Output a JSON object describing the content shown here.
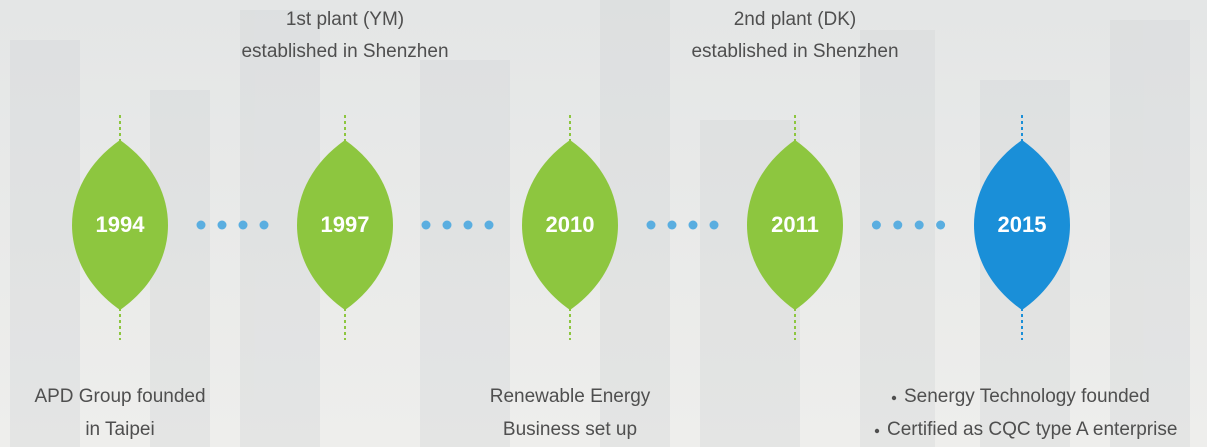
{
  "timeline": {
    "connector_color": "#5aaee0",
    "events": [
      {
        "year": "1994",
        "position": "below",
        "color": "#8dc63f",
        "lines": [
          "APD Group founded",
          "in Taipei"
        ]
      },
      {
        "year": "1997",
        "position": "above",
        "color": "#8dc63f",
        "lines": [
          "1st plant (YM)",
          "established in Shenzhen"
        ]
      },
      {
        "year": "2010",
        "position": "below",
        "color": "#8dc63f",
        "lines": [
          "Renewable Energy",
          "Business set up"
        ]
      },
      {
        "year": "2011",
        "position": "above",
        "color": "#8dc63f",
        "lines": [
          "2nd plant (DK)",
          "established in Shenzhen"
        ]
      },
      {
        "year": "2015",
        "position": "below",
        "color": "#1a8fd8",
        "bullets": true,
        "lines": [
          "Senergy Technology founded",
          "Certified as CQC type A enterprise"
        ]
      }
    ]
  }
}
